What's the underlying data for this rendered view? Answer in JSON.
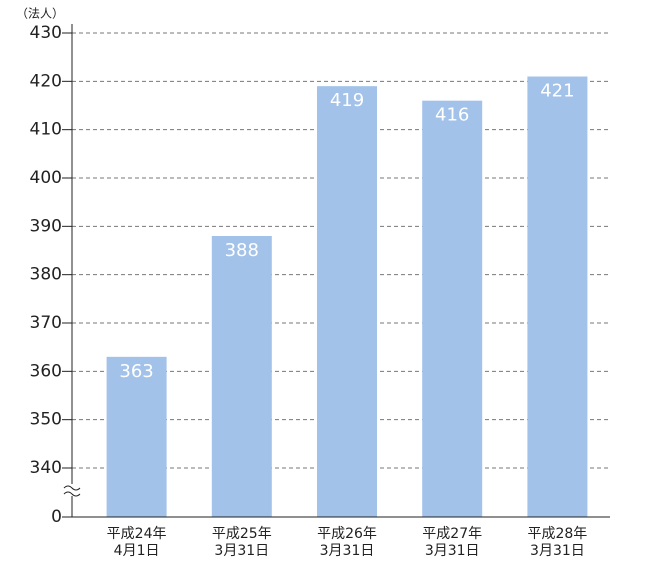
{
  "chart_data": {
    "type": "bar",
    "y_label": "（法人）",
    "categories": [
      [
        "平成24年",
        "4月1日"
      ],
      [
        "平成25年",
        "3月31日"
      ],
      [
        "平成26年",
        "3月31日"
      ],
      [
        "平成27年",
        "3月31日"
      ],
      [
        "平成28年",
        "3月31日"
      ]
    ],
    "values": [
      363,
      388,
      419,
      416,
      421
    ],
    "color": "#a3c2e9",
    "ylim": [
      340,
      430
    ],
    "yticks": [
      0,
      340,
      350,
      360,
      370,
      380,
      390,
      400,
      410,
      420,
      430
    ],
    "axis_break": true,
    "grid": true
  }
}
